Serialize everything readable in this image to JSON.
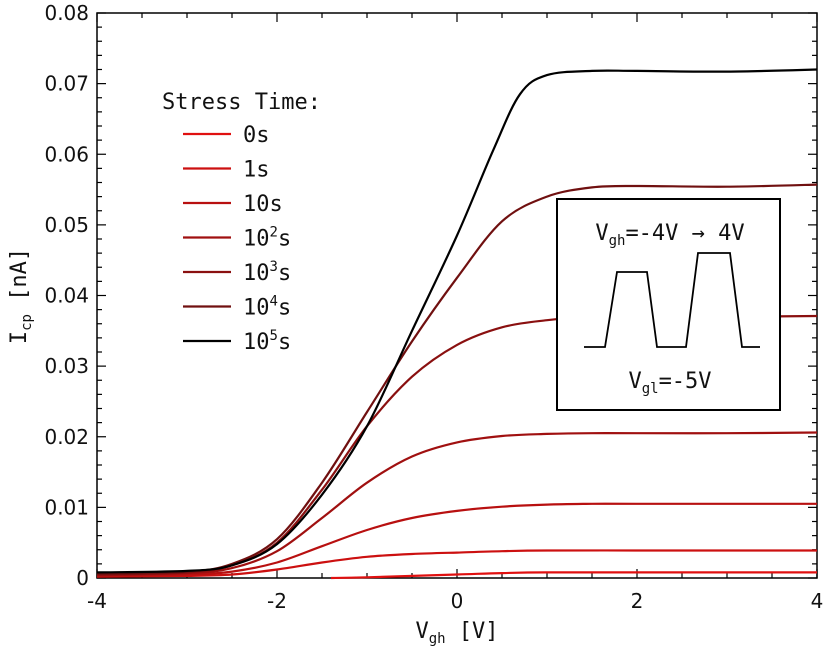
{
  "chart_data": {
    "type": "line",
    "xlabel": {
      "main": "V",
      "sub": "gh",
      "unit": " [V]"
    },
    "ylabel": {
      "main": "I",
      "sub": "cp",
      "unit": " [nA]"
    },
    "xlim": [
      -4,
      4
    ],
    "ylim": [
      0,
      0.08
    ],
    "x_ticks": [
      -4,
      -2,
      0,
      2,
      4
    ],
    "x_tick_labels": [
      "-4",
      "-2",
      "0",
      "2",
      "4"
    ],
    "y_ticks": [
      0,
      0.01,
      0.02,
      0.03,
      0.04,
      0.05,
      0.06,
      0.07,
      0.08
    ],
    "y_tick_labels": [
      "0",
      "0.01",
      "0.02",
      "0.03",
      "0.04",
      "0.05",
      "0.06",
      "0.07",
      "0.08"
    ],
    "grid": false,
    "legend": {
      "title": "Stress Time:",
      "placement": "upper-left",
      "entries": [
        {
          "base": "0s",
          "sup": "",
          "suffix": "",
          "color": "#e01010"
        },
        {
          "base": "1s",
          "sup": "",
          "suffix": "",
          "color": "#cc1010"
        },
        {
          "base": "10s",
          "sup": "",
          "suffix": "",
          "color": "#b81010"
        },
        {
          "base": "10",
          "sup": "2",
          "suffix": "s",
          "color": "#a01010"
        },
        {
          "base": "10",
          "sup": "3",
          "suffix": "s",
          "color": "#8a1010"
        },
        {
          "base": "10",
          "sup": "4",
          "suffix": "s",
          "color": "#701010"
        },
        {
          "base": "10",
          "sup": "5",
          "suffix": "s",
          "color": "#000000"
        }
      ]
    },
    "inset": {
      "top_main": "V",
      "top_sub": "gh",
      "top_text": "=-4V → 4V",
      "bottom_main": "V",
      "bottom_sub": "gl",
      "bottom_text": "=-5V"
    },
    "series": [
      {
        "color": "#e01010",
        "points": [
          [
            -1.4,
            0
          ],
          [
            -1,
            0.0001
          ],
          [
            0,
            0.0005
          ],
          [
            0.5,
            0.0007
          ],
          [
            1,
            0.0008
          ],
          [
            2,
            0.0008
          ],
          [
            3,
            0.0008
          ],
          [
            4,
            0.0008
          ]
        ]
      },
      {
        "color": "#cc1010",
        "points": [
          [
            -4,
            0.0002
          ],
          [
            -3,
            0.0003
          ],
          [
            -2.5,
            0.0005
          ],
          [
            -2,
            0.0012
          ],
          [
            -1.5,
            0.0022
          ],
          [
            -1,
            0.003
          ],
          [
            -0.5,
            0.0034
          ],
          [
            0,
            0.0036
          ],
          [
            0.5,
            0.0038
          ],
          [
            1,
            0.0039
          ],
          [
            2,
            0.0039
          ],
          [
            3,
            0.0039
          ],
          [
            4,
            0.0039
          ]
        ]
      },
      {
        "color": "#b81010",
        "points": [
          [
            -4,
            0.0003
          ],
          [
            -3,
            0.0005
          ],
          [
            -2.5,
            0.0009
          ],
          [
            -2,
            0.0022
          ],
          [
            -1.5,
            0.0045
          ],
          [
            -1,
            0.0068
          ],
          [
            -0.5,
            0.0085
          ],
          [
            0,
            0.0095
          ],
          [
            0.5,
            0.0101
          ],
          [
            1,
            0.0104
          ],
          [
            1.5,
            0.0105
          ],
          [
            2,
            0.0105
          ],
          [
            3,
            0.0105
          ],
          [
            4,
            0.0105
          ]
        ]
      },
      {
        "color": "#a01010",
        "points": [
          [
            -4,
            0.0004
          ],
          [
            -3,
            0.0007
          ],
          [
            -2.5,
            0.0014
          ],
          [
            -2,
            0.0038
          ],
          [
            -1.5,
            0.0085
          ],
          [
            -1,
            0.0135
          ],
          [
            -0.5,
            0.0172
          ],
          [
            0,
            0.0192
          ],
          [
            0.5,
            0.0201
          ],
          [
            1,
            0.0204
          ],
          [
            1.5,
            0.0205
          ],
          [
            2,
            0.0205
          ],
          [
            3,
            0.0205
          ],
          [
            4,
            0.0206
          ]
        ]
      },
      {
        "color": "#8a1010",
        "points": [
          [
            -4,
            0.0005
          ],
          [
            -3,
            0.0008
          ],
          [
            -2.5,
            0.0018
          ],
          [
            -2,
            0.005
          ],
          [
            -1.5,
            0.0125
          ],
          [
            -1,
            0.0215
          ],
          [
            -0.5,
            0.0285
          ],
          [
            0,
            0.033
          ],
          [
            0.5,
            0.0355
          ],
          [
            1,
            0.0365
          ],
          [
            1.5,
            0.037
          ],
          [
            2,
            0.037
          ],
          [
            3,
            0.037
          ],
          [
            4,
            0.0371
          ]
        ]
      },
      {
        "color": "#701010",
        "points": [
          [
            -4,
            0.0006
          ],
          [
            -3,
            0.0009
          ],
          [
            -2.5,
            0.002
          ],
          [
            -2,
            0.0055
          ],
          [
            -1.5,
            0.0135
          ],
          [
            -1,
            0.0235
          ],
          [
            -0.5,
            0.0335
          ],
          [
            0,
            0.0425
          ],
          [
            0.5,
            0.0505
          ],
          [
            1,
            0.054
          ],
          [
            1.5,
            0.0553
          ],
          [
            2,
            0.0555
          ],
          [
            3,
            0.0554
          ],
          [
            4,
            0.0557
          ]
        ]
      },
      {
        "color": "#000000",
        "points": [
          [
            -4,
            0.0008
          ],
          [
            -3,
            0.001
          ],
          [
            -2.5,
            0.0018
          ],
          [
            -2,
            0.0048
          ],
          [
            -1.5,
            0.0118
          ],
          [
            -1,
            0.0215
          ],
          [
            -0.5,
            0.035
          ],
          [
            0,
            0.0485
          ],
          [
            0.4,
            0.0605
          ],
          [
            0.7,
            0.0685
          ],
          [
            1,
            0.0712
          ],
          [
            1.5,
            0.0718
          ],
          [
            2,
            0.0718
          ],
          [
            3,
            0.0717
          ],
          [
            4,
            0.072
          ]
        ]
      }
    ]
  }
}
